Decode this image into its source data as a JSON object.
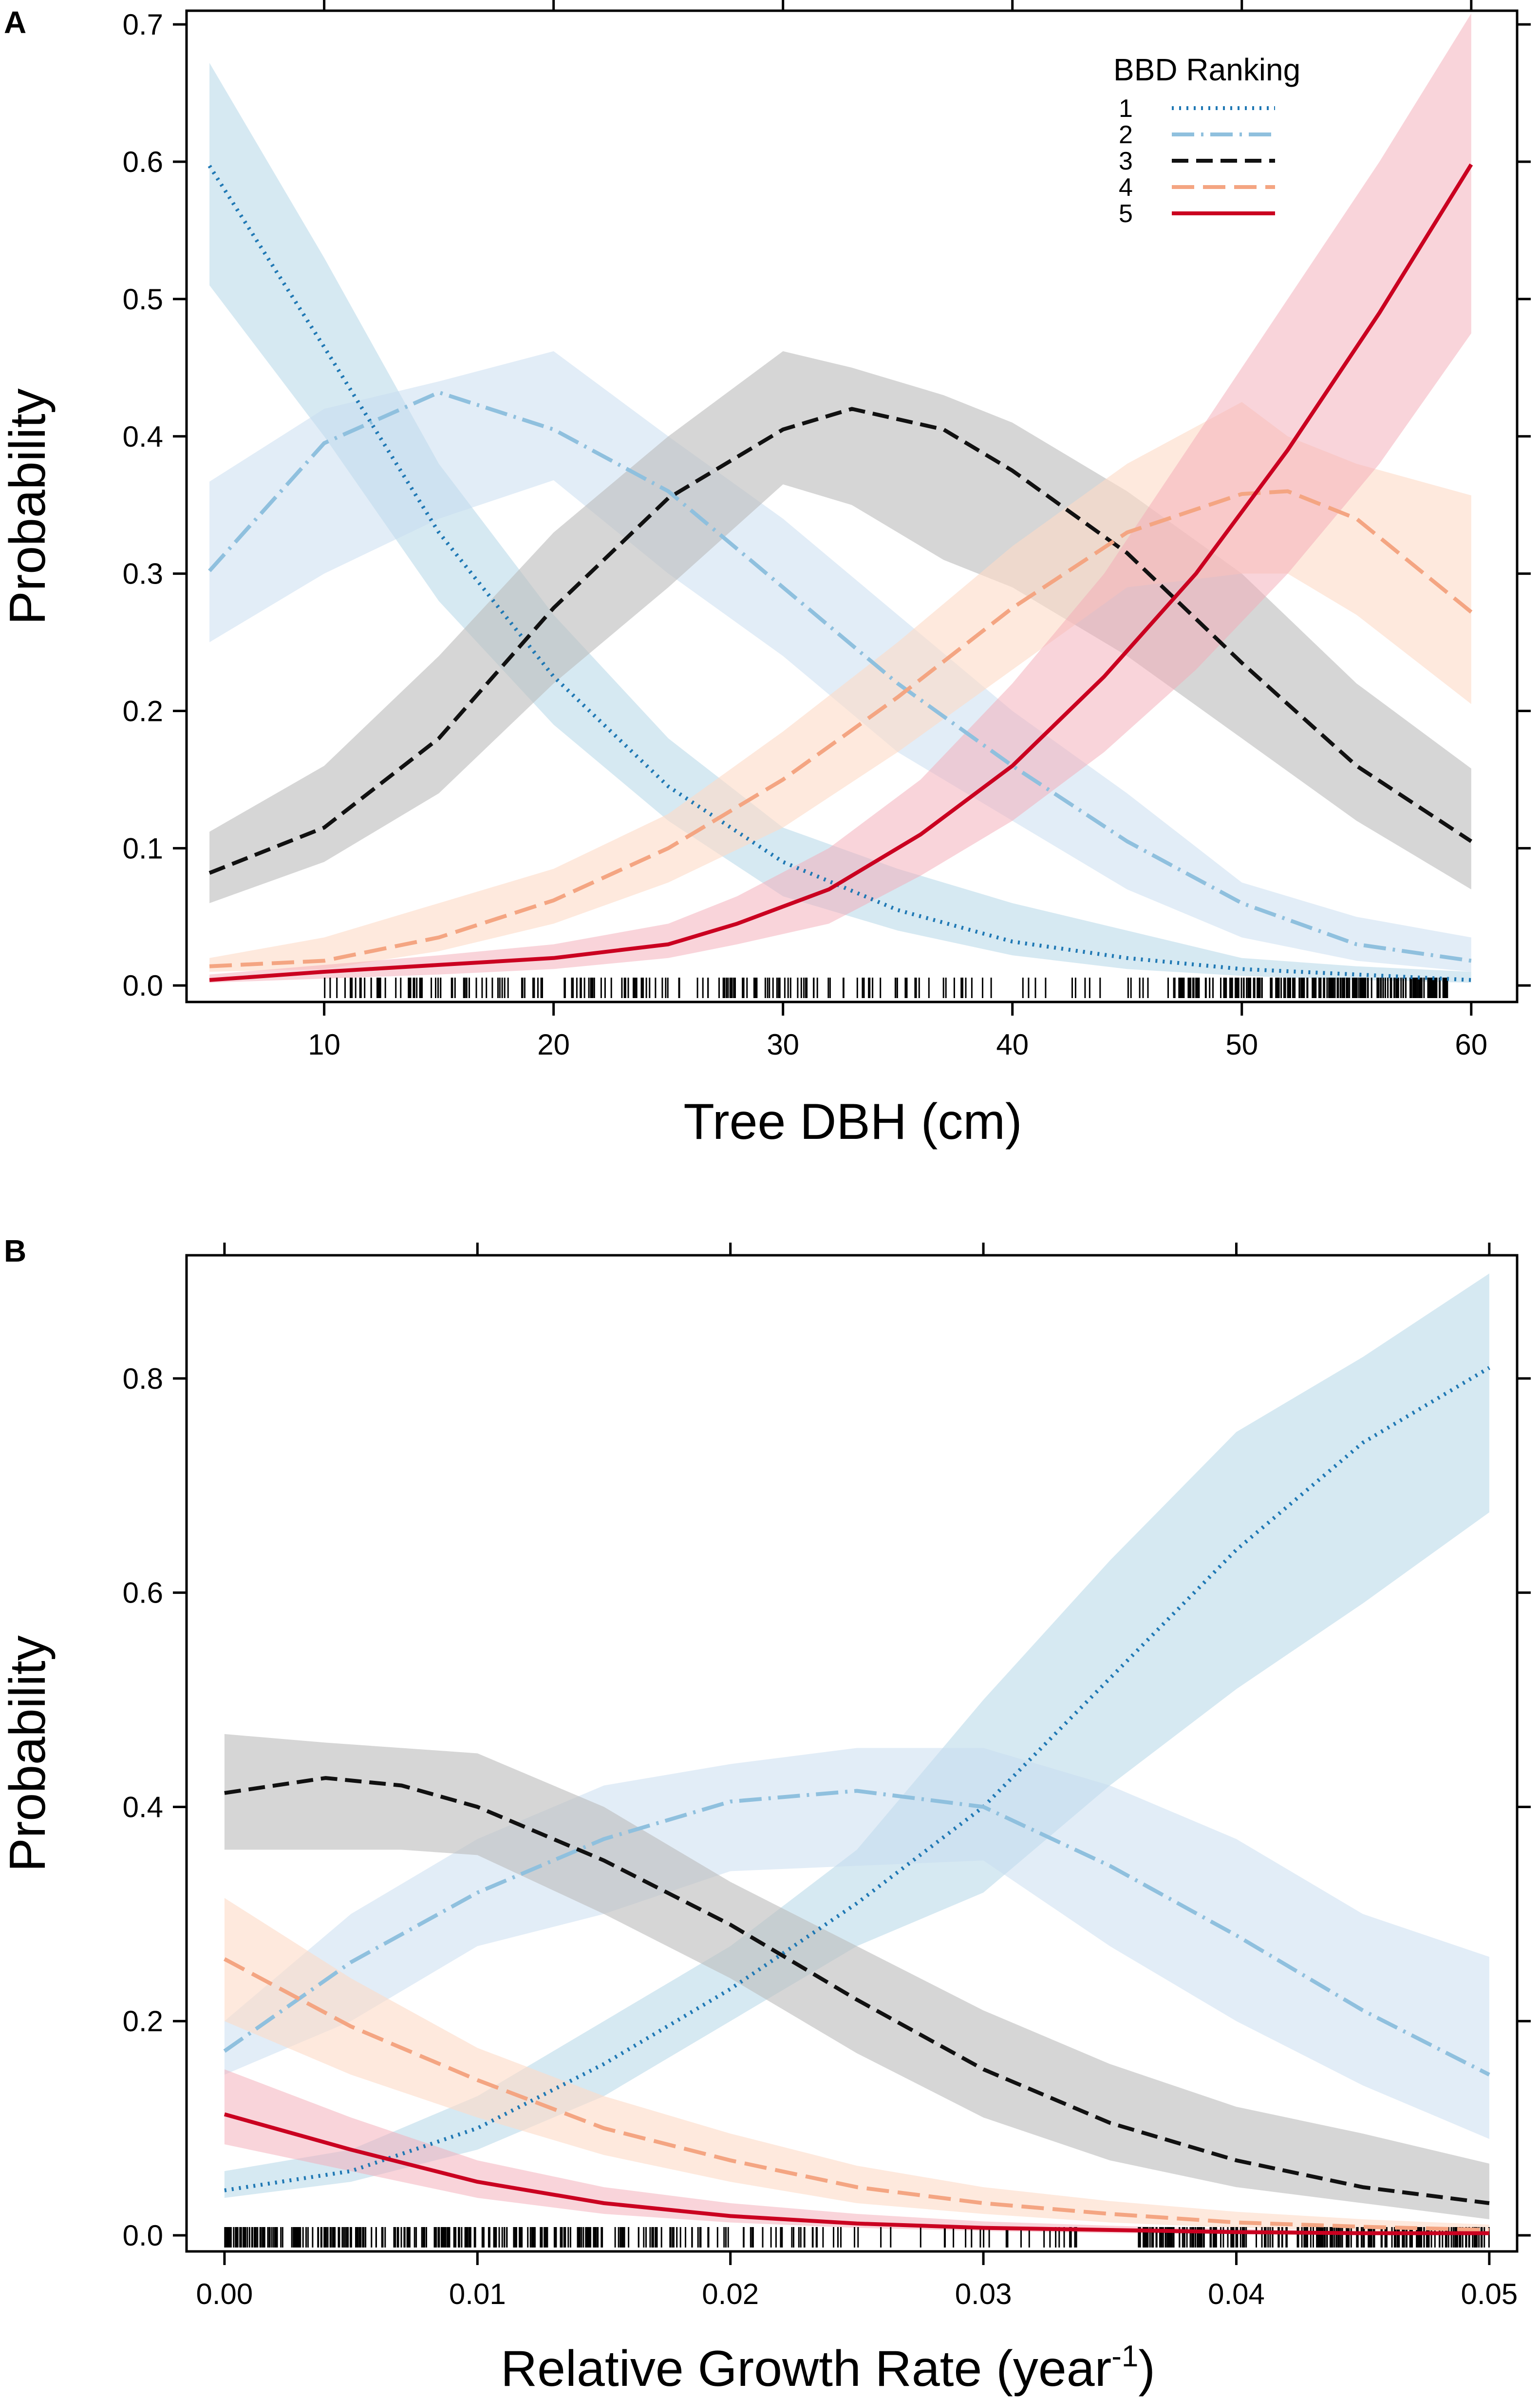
{
  "chart_data": [
    {
      "panel": "A",
      "type": "line",
      "xlabel": "Tree DBH (cm)",
      "ylabel": "Probability",
      "xlim": [
        4,
        62
      ],
      "ylim": [
        -0.012,
        0.71
      ],
      "xticks": [
        10,
        20,
        30,
        40,
        50,
        60
      ],
      "xtick_labels": [
        "10",
        "20",
        "30",
        "40",
        "50",
        "60"
      ],
      "yticks": [
        0.0,
        0.1,
        0.2,
        0.3,
        0.4,
        0.5,
        0.6,
        0.7
      ],
      "ytick_labels": [
        "0.0",
        "0.1",
        "0.2",
        "0.3",
        "0.4",
        "0.5",
        "0.6",
        "0.7"
      ],
      "legend": {
        "title": "BBD Ranking",
        "placement": "top-right"
      },
      "series": [
        {
          "name": "1",
          "color": "#1f78b4",
          "band_color": "#9ecae1",
          "band_opacity": 0.42,
          "dash": "4 11",
          "width": 8,
          "x": [
            5,
            10,
            15,
            20,
            25,
            30,
            35,
            40,
            45,
            50,
            55,
            60
          ],
          "values": [
            0.597,
            0.465,
            0.33,
            0.225,
            0.145,
            0.09,
            0.055,
            0.032,
            0.02,
            0.012,
            0.008,
            0.004
          ],
          "lower": [
            0.51,
            0.4,
            0.28,
            0.19,
            0.12,
            0.065,
            0.04,
            0.022,
            0.012,
            0.007,
            0.004,
            0.002
          ],
          "upper": [
            0.672,
            0.53,
            0.38,
            0.27,
            0.18,
            0.115,
            0.085,
            0.06,
            0.04,
            0.02,
            0.014,
            0.01
          ]
        },
        {
          "name": "2",
          "color": "#8fc0de",
          "band_color": "#c6dbef",
          "band_opacity": 0.5,
          "dash": "46 14 5 14",
          "width": 8,
          "x": [
            5,
            10,
            15,
            20,
            25,
            30,
            35,
            40,
            45,
            50,
            55,
            60
          ],
          "values": [
            0.302,
            0.395,
            0.432,
            0.405,
            0.36,
            0.29,
            0.22,
            0.16,
            0.105,
            0.06,
            0.03,
            0.018
          ],
          "lower": [
            0.25,
            0.3,
            0.34,
            0.368,
            0.3,
            0.24,
            0.17,
            0.12,
            0.07,
            0.035,
            0.018,
            0.01
          ],
          "upper": [
            0.367,
            0.42,
            0.44,
            0.462,
            0.4,
            0.34,
            0.27,
            0.2,
            0.14,
            0.075,
            0.05,
            0.035
          ]
        },
        {
          "name": "3",
          "color": "#111111",
          "band_color": "#bdbdbd",
          "band_opacity": 0.62,
          "dash": "34 16",
          "width": 8,
          "x": [
            5,
            10,
            15,
            20,
            25,
            30,
            33,
            37,
            40,
            45,
            50,
            55,
            60
          ],
          "values": [
            0.082,
            0.115,
            0.18,
            0.275,
            0.355,
            0.405,
            0.42,
            0.405,
            0.375,
            0.315,
            0.235,
            0.16,
            0.105
          ],
          "lower": [
            0.06,
            0.09,
            0.14,
            0.22,
            0.29,
            0.365,
            0.35,
            0.31,
            0.29,
            0.24,
            0.18,
            0.12,
            0.07
          ],
          "upper": [
            0.112,
            0.16,
            0.24,
            0.33,
            0.4,
            0.462,
            0.45,
            0.43,
            0.41,
            0.36,
            0.3,
            0.22,
            0.158
          ]
        },
        {
          "name": "4",
          "color": "#f4a582",
          "band_color": "#fddbc7",
          "band_opacity": 0.6,
          "dash": "46 18",
          "width": 8,
          "x": [
            5,
            10,
            15,
            20,
            25,
            30,
            35,
            40,
            45,
            50,
            52,
            55,
            60
          ],
          "values": [
            0.014,
            0.018,
            0.035,
            0.062,
            0.1,
            0.15,
            0.21,
            0.275,
            0.33,
            0.358,
            0.36,
            0.34,
            0.272
          ],
          "lower": [
            0.01,
            0.012,
            0.025,
            0.045,
            0.075,
            0.115,
            0.17,
            0.23,
            0.29,
            0.3,
            0.3,
            0.27,
            0.205
          ],
          "upper": [
            0.02,
            0.035,
            0.06,
            0.085,
            0.125,
            0.185,
            0.25,
            0.32,
            0.38,
            0.425,
            0.4,
            0.38,
            0.357
          ]
        },
        {
          "name": "5",
          "color": "#ca0020",
          "band_color": "#f4a9b5",
          "band_opacity": 0.5,
          "dash": "",
          "width": 8,
          "x": [
            5,
            10,
            15,
            20,
            25,
            28,
            32,
            36,
            40,
            44,
            48,
            52,
            56,
            60
          ],
          "values": [
            0.004,
            0.01,
            0.015,
            0.02,
            0.03,
            0.045,
            0.07,
            0.11,
            0.16,
            0.225,
            0.3,
            0.39,
            0.49,
            0.598
          ],
          "lower": [
            0.002,
            0.005,
            0.008,
            0.012,
            0.02,
            0.03,
            0.045,
            0.08,
            0.12,
            0.17,
            0.23,
            0.3,
            0.38,
            0.475
          ],
          "upper": [
            0.008,
            0.015,
            0.022,
            0.03,
            0.045,
            0.065,
            0.1,
            0.15,
            0.22,
            0.3,
            0.4,
            0.5,
            0.6,
            0.708
          ]
        }
      ]
    },
    {
      "panel": "B",
      "type": "line",
      "xlabel": "Relative Growth Rate (year",
      "xlabel_sup": "-1",
      "xlabel_end": ")",
      "ylabel": "Probability",
      "xlim": [
        -0.0015,
        0.0511
      ],
      "ylim": [
        -0.015,
        0.915
      ],
      "xticks": [
        0.0,
        0.01,
        0.02,
        0.03,
        0.04,
        0.05
      ],
      "xtick_labels": [
        "0.00",
        "0.01",
        "0.02",
        "0.03",
        "0.04",
        "0.05"
      ],
      "yticks": [
        0.0,
        0.2,
        0.4,
        0.6,
        0.8
      ],
      "ytick_labels": [
        "0.0",
        "0.2",
        "0.4",
        "0.6",
        "0.8"
      ],
      "series": [
        {
          "name": "1",
          "color": "#1f78b4",
          "band_color": "#9ecae1",
          "band_opacity": 0.42,
          "dash": "4 11",
          "width": 8,
          "x": [
            0.0,
            0.005,
            0.01,
            0.015,
            0.02,
            0.025,
            0.03,
            0.035,
            0.04,
            0.045,
            0.05
          ],
          "values": [
            0.042,
            0.06,
            0.1,
            0.16,
            0.23,
            0.31,
            0.4,
            0.52,
            0.64,
            0.74,
            0.81
          ],
          "lower": [
            0.035,
            0.05,
            0.08,
            0.13,
            0.2,
            0.27,
            0.32,
            0.42,
            0.51,
            0.59,
            0.675
          ],
          "upper": [
            0.06,
            0.08,
            0.13,
            0.2,
            0.27,
            0.36,
            0.5,
            0.63,
            0.75,
            0.82,
            0.898
          ]
        },
        {
          "name": "2",
          "color": "#8fc0de",
          "band_color": "#c6dbef",
          "band_opacity": 0.5,
          "dash": "46 14 5 14",
          "width": 8,
          "x": [
            0.0,
            0.005,
            0.01,
            0.015,
            0.02,
            0.025,
            0.03,
            0.035,
            0.04,
            0.045,
            0.05
          ],
          "values": [
            0.172,
            0.255,
            0.32,
            0.37,
            0.405,
            0.415,
            0.4,
            0.345,
            0.28,
            0.21,
            0.15
          ],
          "lower": [
            0.15,
            0.2,
            0.27,
            0.3,
            0.34,
            0.345,
            0.35,
            0.27,
            0.2,
            0.14,
            0.09
          ],
          "upper": [
            0.2,
            0.3,
            0.37,
            0.42,
            0.44,
            0.455,
            0.455,
            0.42,
            0.37,
            0.3,
            0.26
          ]
        },
        {
          "name": "3",
          "color": "#111111",
          "band_color": "#bdbdbd",
          "band_opacity": 0.62,
          "dash": "34 16",
          "width": 8,
          "x": [
            0.0,
            0.004,
            0.007,
            0.01,
            0.015,
            0.02,
            0.025,
            0.03,
            0.035,
            0.04,
            0.045,
            0.05
          ],
          "values": [
            0.413,
            0.427,
            0.42,
            0.4,
            0.35,
            0.29,
            0.22,
            0.155,
            0.105,
            0.07,
            0.045,
            0.03
          ],
          "lower": [
            0.36,
            0.36,
            0.36,
            0.355,
            0.3,
            0.24,
            0.17,
            0.11,
            0.07,
            0.045,
            0.03,
            0.015
          ],
          "upper": [
            0.468,
            0.46,
            0.455,
            0.45,
            0.4,
            0.33,
            0.27,
            0.21,
            0.16,
            0.12,
            0.095,
            0.067
          ]
        },
        {
          "name": "4",
          "color": "#f4a582",
          "band_color": "#fddbc7",
          "band_opacity": 0.6,
          "dash": "46 18",
          "width": 8,
          "x": [
            0.0,
            0.005,
            0.01,
            0.015,
            0.02,
            0.025,
            0.03,
            0.035,
            0.04,
            0.045,
            0.05
          ],
          "values": [
            0.258,
            0.195,
            0.145,
            0.1,
            0.07,
            0.045,
            0.03,
            0.02,
            0.012,
            0.008,
            0.005
          ],
          "lower": [
            0.2,
            0.15,
            0.11,
            0.075,
            0.05,
            0.03,
            0.02,
            0.012,
            0.007,
            0.004,
            0.002
          ],
          "upper": [
            0.315,
            0.24,
            0.175,
            0.13,
            0.095,
            0.065,
            0.045,
            0.032,
            0.022,
            0.015,
            0.01
          ]
        },
        {
          "name": "5",
          "color": "#ca0020",
          "band_color": "#f4a9b5",
          "band_opacity": 0.5,
          "dash": "",
          "width": 8,
          "x": [
            0.0,
            0.005,
            0.01,
            0.015,
            0.02,
            0.025,
            0.03,
            0.035,
            0.04,
            0.045,
            0.05
          ],
          "values": [
            0.113,
            0.08,
            0.05,
            0.03,
            0.018,
            0.011,
            0.007,
            0.005,
            0.003,
            0.002,
            0.002
          ],
          "lower": [
            0.085,
            0.06,
            0.035,
            0.02,
            0.012,
            0.007,
            0.004,
            0.002,
            0.001,
            0.001,
            0.001
          ],
          "upper": [
            0.155,
            0.11,
            0.07,
            0.045,
            0.03,
            0.02,
            0.013,
            0.009,
            0.006,
            0.004,
            0.003
          ]
        }
      ]
    }
  ]
}
